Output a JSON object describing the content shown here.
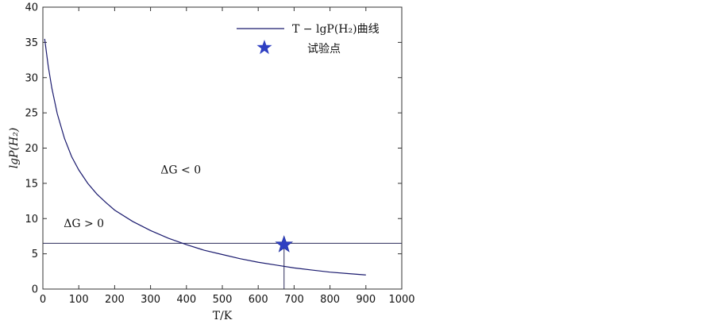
{
  "chart_data": {
    "type": "line",
    "xlabel": "T/K",
    "ylabel": "lgP(H₂)",
    "xlim": [
      0,
      1000
    ],
    "ylim": [
      0,
      40
    ],
    "x_ticks": [
      0,
      100,
      200,
      300,
      400,
      500,
      600,
      700,
      800,
      900,
      1000
    ],
    "y_ticks": [
      0,
      5,
      10,
      15,
      20,
      25,
      30,
      35,
      40
    ],
    "grid": false,
    "legend_position": "top-right",
    "series": [
      {
        "name": "T − lgP(H₂)曲线",
        "style": "line",
        "color": "#1a1a6e",
        "x": [
          5,
          15,
          25,
          40,
          60,
          80,
          100,
          125,
          150,
          175,
          200,
          250,
          300,
          350,
          400,
          450,
          500,
          550,
          600,
          650,
          700,
          750,
          800,
          850,
          900
        ],
        "y": [
          35.5,
          31.6,
          28.5,
          24.9,
          21.4,
          18.8,
          16.9,
          15.0,
          13.5,
          12.3,
          11.2,
          9.6,
          8.3,
          7.2,
          6.3,
          5.5,
          4.9,
          4.3,
          3.8,
          3.4,
          3.0,
          2.7,
          2.4,
          2.2,
          2.0
        ]
      },
      {
        "name": "试验点",
        "style": "marker",
        "marker": "star",
        "color": "#2e3fc2",
        "x": [
          672
        ],
        "y": [
          6.3
        ]
      }
    ],
    "reference_lines": [
      {
        "orientation": "horizontal",
        "y": 6.5,
        "x_range": [
          0,
          1000
        ]
      },
      {
        "orientation": "vertical",
        "x": 672,
        "y_range": [
          0,
          6.3
        ]
      }
    ],
    "annotations": [
      {
        "text": "ΔG < 0",
        "x": 390,
        "y": 16.4
      },
      {
        "text": "ΔG > 0",
        "x": 120,
        "y": 8.8
      }
    ]
  }
}
